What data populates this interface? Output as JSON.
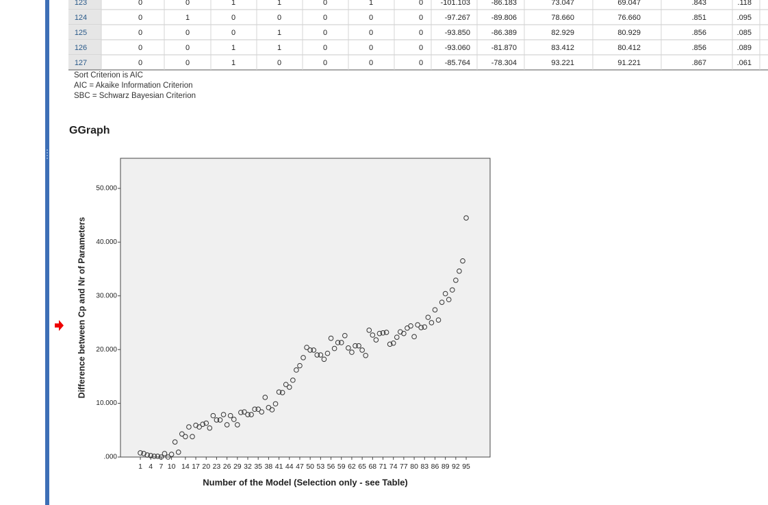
{
  "table": {
    "rows": [
      {
        "label": "123",
        "cells": [
          "0",
          "0",
          "1",
          "1",
          "0",
          "1",
          "0",
          "-101.103",
          "-86.183",
          "73.047",
          "69.047",
          ".843",
          ".118"
        ]
      },
      {
        "label": "124",
        "cells": [
          "0",
          "1",
          "0",
          "0",
          "0",
          "0",
          "0",
          "-97.267",
          "-89.806",
          "78.660",
          "76.660",
          ".851",
          ".095"
        ]
      },
      {
        "label": "125",
        "cells": [
          "0",
          "0",
          "0",
          "1",
          "0",
          "0",
          "0",
          "-93.850",
          "-86.389",
          "82.929",
          "80.929",
          ".856",
          ".085"
        ]
      },
      {
        "label": "126",
        "cells": [
          "0",
          "0",
          "1",
          "1",
          "0",
          "0",
          "0",
          "-93.060",
          "-81.870",
          "83.412",
          "80.412",
          ".856",
          ".089"
        ]
      },
      {
        "label": "127",
        "cells": [
          "0",
          "0",
          "1",
          "0",
          "0",
          "0",
          "0",
          "-85.764",
          "-78.304",
          "93.221",
          "91.221",
          ".867",
          ".061"
        ]
      }
    ]
  },
  "notes": [
    "Sort Criterion is AIC",
    "AIC = Akaike Information Criterion",
    "SBC = Schwarz Bayesian Criterion"
  ],
  "heading": "GGraph",
  "chart_data": {
    "type": "scatter",
    "x_label": "Number of the Model (Selection  only - see Table)",
    "y_label": "Difference between Cp and Nr of Parameters",
    "x": [
      1,
      2,
      3,
      4,
      5,
      6,
      7,
      8,
      9,
      10,
      11,
      12,
      13,
      14,
      15,
      16,
      17,
      18,
      19,
      20,
      21,
      22,
      23,
      24,
      25,
      26,
      27,
      28,
      29,
      30,
      31,
      32,
      33,
      34,
      35,
      36,
      37,
      38,
      39,
      40,
      41,
      42,
      43,
      44,
      45,
      46,
      47,
      48,
      49,
      50,
      51,
      52,
      53,
      54,
      55,
      56,
      57,
      58,
      59,
      60,
      61,
      62,
      63,
      64,
      65,
      66,
      67,
      68,
      69,
      70,
      71,
      72,
      73,
      74,
      75,
      76,
      77,
      78,
      79,
      80,
      81,
      82,
      83,
      84,
      85,
      86,
      87,
      88,
      89,
      90,
      91,
      92,
      93,
      94,
      95
    ],
    "values": [
      0.77,
      0.64,
      0.38,
      0.26,
      0.13,
      0.13,
      0.0,
      0.64,
      0.0,
      0.5,
      2.8,
      0.9,
      4.3,
      3.8,
      5.6,
      3.8,
      5.9,
      5.6,
      6.1,
      6.3,
      5.4,
      7.7,
      6.9,
      6.9,
      7.9,
      6.0,
      7.7,
      7.0,
      6.0,
      8.3,
      8.4,
      7.9,
      7.9,
      8.9,
      8.9,
      8.4,
      11.1,
      9.2,
      8.8,
      9.9,
      12.1,
      12.0,
      13.5,
      13.0,
      14.3,
      16.2,
      17.0,
      18.5,
      20.4,
      19.9,
      19.9,
      19.0,
      19.0,
      18.2,
      19.3,
      22.1,
      20.2,
      21.3,
      21.3,
      22.6,
      20.3,
      19.5,
      20.7,
      20.7,
      19.9,
      18.9,
      23.6,
      22.7,
      21.8,
      23.0,
      23.1,
      23.2,
      21.0,
      21.2,
      22.3,
      23.3,
      23.0,
      24.0,
      24.4,
      22.4,
      24.6,
      24.1,
      24.2,
      26.0,
      25.0,
      27.4,
      25.5,
      28.8,
      30.4,
      29.3,
      31.1,
      32.9,
      34.6,
      36.5,
      44.5
    ],
    "color": "#333333",
    "xlim": [
      -4.73,
      101.9
    ],
    "xticks": [
      1,
      4,
      7,
      10,
      14,
      17,
      20,
      23,
      26,
      29,
      32,
      35,
      38,
      41,
      44,
      47,
      50,
      53,
      56,
      59,
      62,
      65,
      68,
      71,
      74,
      77,
      80,
      83,
      86,
      89,
      92,
      95
    ],
    "ylim": [
      0,
      55.6
    ],
    "yticks": [
      {
        "value": 0,
        "label": ".000"
      },
      {
        "value": 10,
        "label": "10.000"
      },
      {
        "value": 20,
        "label": "20.000"
      },
      {
        "value": 30,
        "label": "30.000"
      },
      {
        "value": 40,
        "label": "40.000"
      },
      {
        "value": 50,
        "label": "50.000"
      }
    ]
  }
}
